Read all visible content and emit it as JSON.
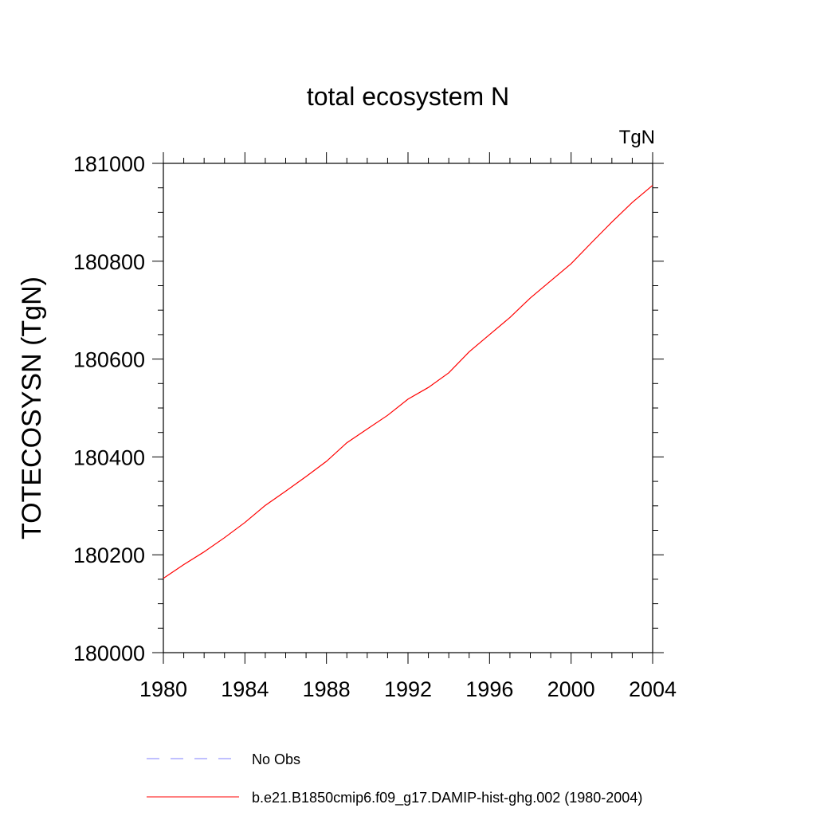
{
  "chart_data": {
    "type": "line",
    "title": "total ecosystem N",
    "units_label": "TgN",
    "xlabel": "",
    "ylabel": "TOTECOSYSN  (TgN)",
    "xlim": [
      1980,
      2004
    ],
    "ylim": [
      180000,
      181000
    ],
    "x_ticks": [
      "1980",
      "1984",
      "1988",
      "1992",
      "1996",
      "2000",
      "2004"
    ],
    "y_ticks": [
      "180000",
      "180200",
      "180400",
      "180600",
      "180800",
      "181000"
    ],
    "grid": false,
    "series": [
      {
        "name": "b.e21.B1850cmip6.f09_g17.DAMIP-hist-ghg.002 (1980-2004)",
        "color": "#ff0000",
        "style": "solid",
        "x": [
          1980,
          1981,
          1982,
          1983,
          1984,
          1985,
          1986,
          1987,
          1988,
          1989,
          1990,
          1991,
          1992,
          1993,
          1994,
          1995,
          1996,
          1997,
          1998,
          1999,
          2000,
          2001,
          2002,
          2003,
          2004
        ],
        "y": [
          180152,
          180180,
          180206,
          180235,
          180266,
          180301,
          180330,
          180360,
          180391,
          180429,
          180457,
          180485,
          180518,
          180542,
          180572,
          180615,
          180650,
          180685,
          180725,
          180760,
          180795,
          180838,
          180880,
          180920,
          180955
        ]
      }
    ],
    "legend": [
      {
        "label": "No Obs",
        "color": "#8080ff",
        "style": "dashed"
      },
      {
        "label": "b.e21.B1850cmip6.f09_g17.DAMIP-hist-ghg.002 (1980-2004)",
        "color": "#ff0000",
        "style": "solid"
      }
    ]
  }
}
